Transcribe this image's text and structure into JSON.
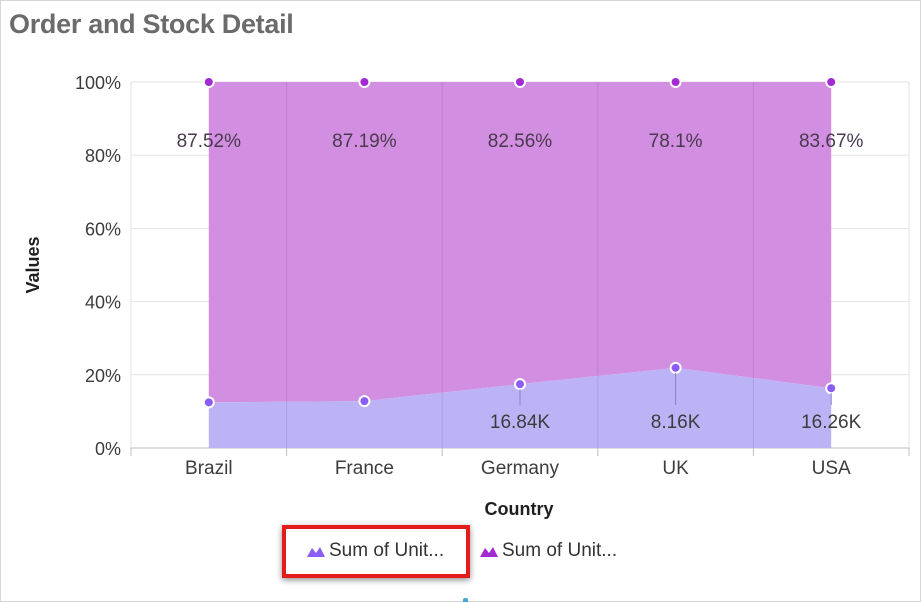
{
  "header": {
    "title": "Order and Stock Detail"
  },
  "chart_data": {
    "type": "area",
    "stacking": "100%",
    "categories": [
      "Brazil",
      "France",
      "Germany",
      "UK",
      "USA"
    ],
    "xlabel": "Country",
    "ylabel": "Values",
    "y_ticks": [
      "0%",
      "20%",
      "40%",
      "60%",
      "80%",
      "100%"
    ],
    "ylim": [
      0,
      100
    ],
    "grid": true,
    "series": [
      {
        "name": "Sum of Unit...",
        "color": "#bcb3f7",
        "marker_color": "#8b5cf6",
        "values_percent": [
          12.48,
          12.81,
          17.44,
          21.9,
          16.33
        ],
        "data_labels": [
          "",
          "",
          "16.84K",
          "8.16K",
          "16.26K"
        ]
      },
      {
        "name": "Sum of Unit...",
        "color": "#d28ee0",
        "marker_color": "#a22ad0",
        "values_percent": [
          87.52,
          87.19,
          82.56,
          78.1,
          83.67
        ],
        "data_labels": [
          "87.52%",
          "87.19%",
          "82.56%",
          "78.1%",
          "83.67%"
        ]
      }
    ],
    "legend": {
      "position": "bottom"
    }
  }
}
